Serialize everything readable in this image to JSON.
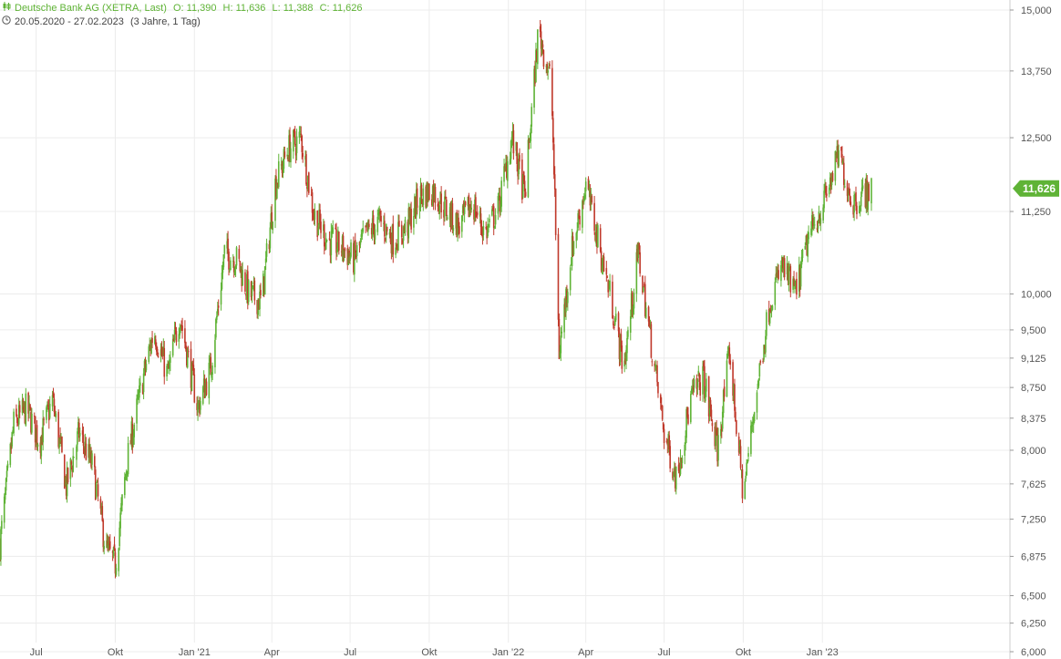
{
  "header": {
    "title": "Deutsche Bank AG (XETRA, Last)",
    "ohlc": {
      "o": "O: 11,390",
      "h": "H: 11,636",
      "l": "L: 11,388",
      "c": "C: 11,626"
    },
    "range": "20.05.2020 - 27.02.2023",
    "period": "(3 Jahre, 1 Tag)",
    "icons": {
      "title": "candlestick-icon",
      "range": "clock-icon"
    }
  },
  "colors": {
    "up": "#5fb336",
    "down": "#c0392b",
    "accent": "#5fb336"
  },
  "chart_data": {
    "type": "line",
    "title": "Deutsche Bank AG (XETRA, Last)",
    "y_scale": "log",
    "ylim": [
      6.0,
      15.0
    ],
    "grid": true,
    "last_value": "11,626",
    "y_ticks": [
      "15,000",
      "13,750",
      "12,500",
      "11,250",
      "10,000",
      "9,500",
      "9,125",
      "8,750",
      "8,375",
      "8,000",
      "7,625",
      "7,250",
      "6,875",
      "6,500",
      "6,250",
      "6,000"
    ],
    "y_tick_values": [
      15.0,
      13.75,
      12.5,
      11.25,
      10.0,
      9.5,
      9.125,
      8.75,
      8.375,
      8.0,
      7.625,
      7.25,
      6.875,
      6.5,
      6.25,
      6.0
    ],
    "x_ticks": [
      "Jul",
      "Okt",
      "Jan '21",
      "Apr",
      "Jul",
      "Okt",
      "Jan '22",
      "Apr",
      "Jul",
      "Okt",
      "Jan '23"
    ],
    "x_tick_dates": [
      "2020-07-01",
      "2020-10-01",
      "2021-01-01",
      "2021-04-01",
      "2021-07-01",
      "2021-10-01",
      "2022-01-01",
      "2022-04-01",
      "2022-07-01",
      "2022-10-01",
      "2023-01-01"
    ],
    "series": [
      {
        "x": [
          "2020-05-20",
          "2020-06-05",
          "2020-06-20",
          "2020-07-05",
          "2020-07-20",
          "2020-08-05",
          "2020-08-20",
          "2020-09-05",
          "2020-09-20",
          "2020-10-01",
          "2020-10-15",
          "2020-11-01",
          "2020-11-15",
          "2020-12-01",
          "2020-12-15",
          "2021-01-05",
          "2021-01-20",
          "2021-02-05",
          "2021-02-20",
          "2021-03-05",
          "2021-03-20",
          "2021-04-05",
          "2021-04-20",
          "2021-05-05",
          "2021-05-20",
          "2021-06-05",
          "2021-06-20",
          "2021-07-05",
          "2021-07-20",
          "2021-08-05",
          "2021-08-20",
          "2021-09-05",
          "2021-09-20",
          "2021-10-05",
          "2021-10-20",
          "2021-11-05",
          "2021-11-20",
          "2021-12-05",
          "2021-12-20",
          "2022-01-05",
          "2022-01-20",
          "2022-02-05",
          "2022-02-20",
          "2022-03-01",
          "2022-03-15",
          "2022-04-01",
          "2022-04-15",
          "2022-05-01",
          "2022-05-15",
          "2022-06-01",
          "2022-06-15",
          "2022-07-01",
          "2022-07-15",
          "2022-08-01",
          "2022-08-15",
          "2022-09-01",
          "2022-09-15",
          "2022-10-01",
          "2022-10-15",
          "2022-11-01",
          "2022-11-15",
          "2022-12-01",
          "2022-12-15",
          "2023-01-05",
          "2023-01-20",
          "2023-02-05",
          "2023-02-27"
        ],
        "values": [
          7.0,
          8.3,
          8.5,
          8.1,
          8.6,
          7.6,
          8.2,
          7.8,
          6.95,
          6.8,
          7.9,
          8.8,
          9.5,
          8.9,
          9.7,
          8.5,
          9.0,
          10.6,
          10.5,
          10.0,
          9.9,
          11.7,
          12.3,
          12.5,
          11.2,
          10.8,
          10.7,
          10.5,
          10.9,
          11.1,
          10.8,
          11.0,
          11.5,
          11.6,
          11.3,
          11.0,
          11.4,
          10.9,
          11.3,
          12.5,
          11.5,
          14.6,
          13.5,
          9.2,
          10.6,
          11.7,
          10.8,
          9.9,
          9.0,
          10.6,
          9.4,
          8.2,
          7.7,
          8.6,
          8.9,
          8.0,
          9.2,
          7.5,
          8.6,
          9.9,
          10.4,
          10.0,
          10.8,
          11.5,
          12.2,
          11.4,
          11.626
        ]
      }
    ]
  }
}
